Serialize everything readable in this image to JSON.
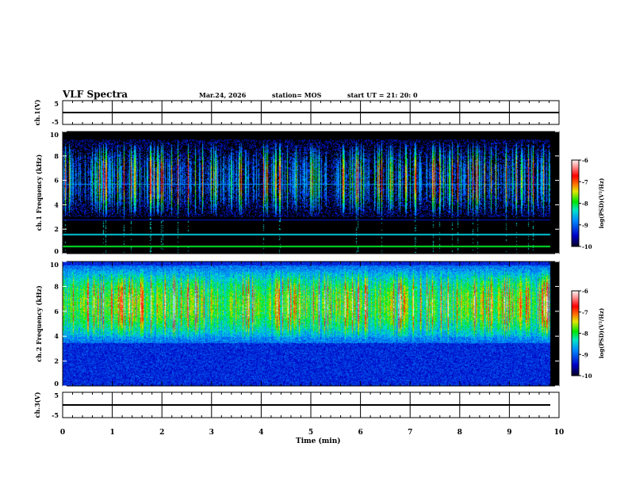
{
  "header": {
    "title": "VLF Spectra",
    "date": "Mar.24, 2026",
    "station": "station= MOS",
    "start": "start  UT =   21: 20: 0"
  },
  "chart_data": {
    "type": "heatmap",
    "title": "VLF Spectra",
    "xlabel": "Time  (min)",
    "xlim": [
      0,
      10
    ],
    "xticks": [
      "0",
      "1",
      "2",
      "3",
      "4",
      "5",
      "6",
      "7",
      "8",
      "9",
      "10"
    ],
    "panels": [
      {
        "name": "ch1-voltage",
        "ylabel": "ch.1(V)",
        "ylim": [
          -5,
          5
        ],
        "yticks": [
          "5",
          "-5"
        ],
        "value": 0
      },
      {
        "name": "ch1-spectrogram",
        "ylabel": "ch.1 Frequency (kHz)",
        "ylim": [
          0,
          10
        ],
        "yticks": [
          "0",
          "2",
          "4",
          "6",
          "8",
          "10"
        ],
        "colorbar": {
          "label": "log(PSD)(V²/Hz)",
          "range": [
            -10,
            -6
          ],
          "ticks": [
            "-6",
            "-7",
            "-8",
            "-9",
            "-10"
          ]
        }
      },
      {
        "name": "ch2-spectrogram",
        "ylabel": "ch.2 Frequency (kHz)",
        "ylim": [
          0,
          10
        ],
        "yticks": [
          "0",
          "2",
          "4",
          "6",
          "8",
          "10"
        ],
        "colorbar": {
          "label": "log(PSD)(V²/Hz)",
          "range": [
            -10,
            -6
          ],
          "ticks": [
            "-6",
            "-7",
            "-8",
            "-9",
            "-10"
          ]
        }
      },
      {
        "name": "ch3-voltage",
        "ylabel": "ch.3(V)",
        "ylim": [
          -5,
          5
        ],
        "yticks": [
          "5",
          "-5"
        ],
        "value": 0
      }
    ],
    "data_end_min": 9.83
  }
}
